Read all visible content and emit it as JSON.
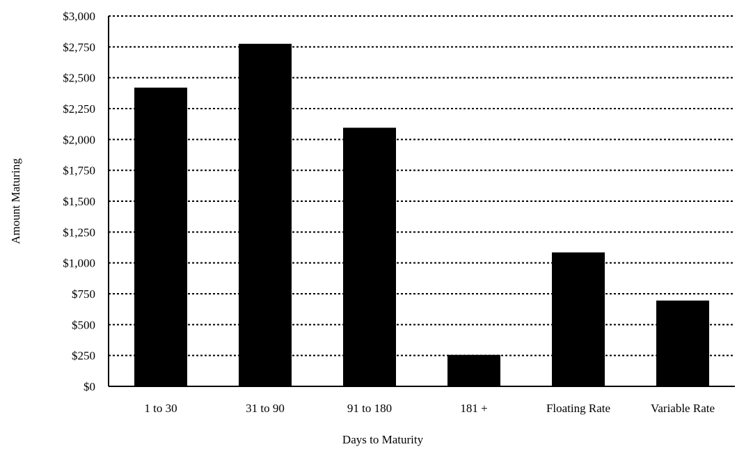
{
  "chart_data": {
    "type": "bar",
    "title": "",
    "xlabel": "Days to Maturity",
    "ylabel": "Amount Maturing",
    "categories": [
      "1 to 30",
      "31 to 90",
      "91 to 180",
      "181 +",
      "Floating Rate",
      "Variable Rate"
    ],
    "values": [
      2420,
      2775,
      2095,
      255,
      1085,
      695
    ],
    "ylim": [
      0,
      3000
    ],
    "yticks": [
      0,
      250,
      500,
      750,
      1000,
      1250,
      1500,
      1750,
      2000,
      2250,
      2500,
      2750,
      3000
    ],
    "ytick_labels": [
      "$0",
      "$250",
      "$500",
      "$750",
      "$1,000",
      "$1,250",
      "$1,500",
      "$1,750",
      "$2,000",
      "$2,250",
      "$2,500",
      "$2,750",
      "$3,000"
    ],
    "grid": "horizontal dotted",
    "bar_color": "#000000",
    "grid_color": "#000000"
  }
}
